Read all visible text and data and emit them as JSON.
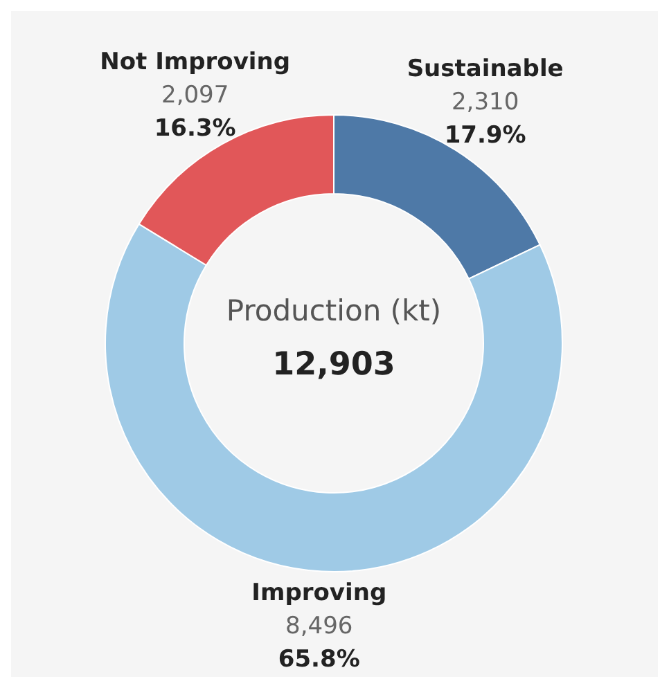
{
  "chart_data": {
    "type": "donut",
    "categories": [
      "Sustainable",
      "Improving",
      "Not Improving"
    ],
    "values": [
      2310,
      8496,
      2097
    ],
    "colors": [
      "#4e79a7",
      "#9fcae6",
      "#e15759"
    ],
    "value_labels": [
      "2,310\n17.9%",
      "8,496\n65.8%",
      "2,097\n16.3%"
    ],
    "annotations": [
      "Production (kt)",
      "12,903"
    ]
  }
}
